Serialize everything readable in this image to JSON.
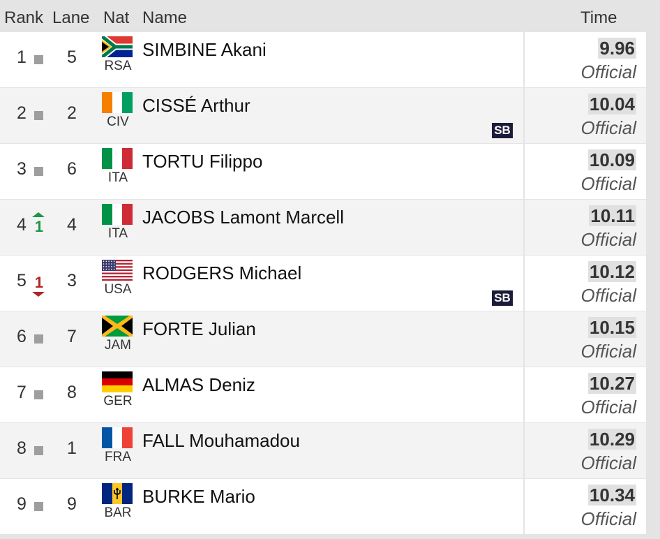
{
  "header": {
    "rank": "Rank",
    "lane": "Lane",
    "nat": "Nat",
    "name": "Name",
    "time": "Time"
  },
  "rows": [
    {
      "rank": "1",
      "change_type": "same",
      "change": "",
      "lane": "5",
      "nat": "RSA",
      "flag": "south-africa-flag",
      "name": "SIMBINE Akani",
      "note": "",
      "time": "9.96",
      "status": "Official"
    },
    {
      "rank": "2",
      "change_type": "same",
      "change": "",
      "lane": "2",
      "nat": "CIV",
      "flag": "ivory-coast-flag",
      "name": "CISSÉ Arthur",
      "note": "SB",
      "time": "10.04",
      "status": "Official"
    },
    {
      "rank": "3",
      "change_type": "same",
      "change": "",
      "lane": "6",
      "nat": "ITA",
      "flag": "italy-flag",
      "name": "TORTU Filippo",
      "note": "",
      "time": "10.09",
      "status": "Official"
    },
    {
      "rank": "4",
      "change_type": "up",
      "change": "1",
      "lane": "4",
      "nat": "ITA",
      "flag": "italy-flag",
      "name": "JACOBS Lamont Marcell",
      "note": "",
      "time": "10.11",
      "status": "Official"
    },
    {
      "rank": "5",
      "change_type": "down",
      "change": "1",
      "lane": "3",
      "nat": "USA",
      "flag": "usa-flag",
      "name": "RODGERS Michael",
      "note": "SB",
      "time": "10.12",
      "status": "Official"
    },
    {
      "rank": "6",
      "change_type": "same",
      "change": "",
      "lane": "7",
      "nat": "JAM",
      "flag": "jamaica-flag",
      "name": "FORTE Julian",
      "note": "",
      "time": "10.15",
      "status": "Official"
    },
    {
      "rank": "7",
      "change_type": "same",
      "change": "",
      "lane": "8",
      "nat": "GER",
      "flag": "germany-flag",
      "name": "ALMAS Deniz",
      "note": "",
      "time": "10.27",
      "status": "Official"
    },
    {
      "rank": "8",
      "change_type": "same",
      "change": "",
      "lane": "1",
      "nat": "FRA",
      "flag": "france-flag",
      "name": "FALL Mouhamadou",
      "note": "",
      "time": "10.29",
      "status": "Official"
    },
    {
      "rank": "9",
      "change_type": "same",
      "change": "",
      "lane": "9",
      "nat": "BAR",
      "flag": "barbados-flag",
      "name": "BURKE Mario",
      "note": "",
      "time": "10.34",
      "status": "Official"
    }
  ]
}
